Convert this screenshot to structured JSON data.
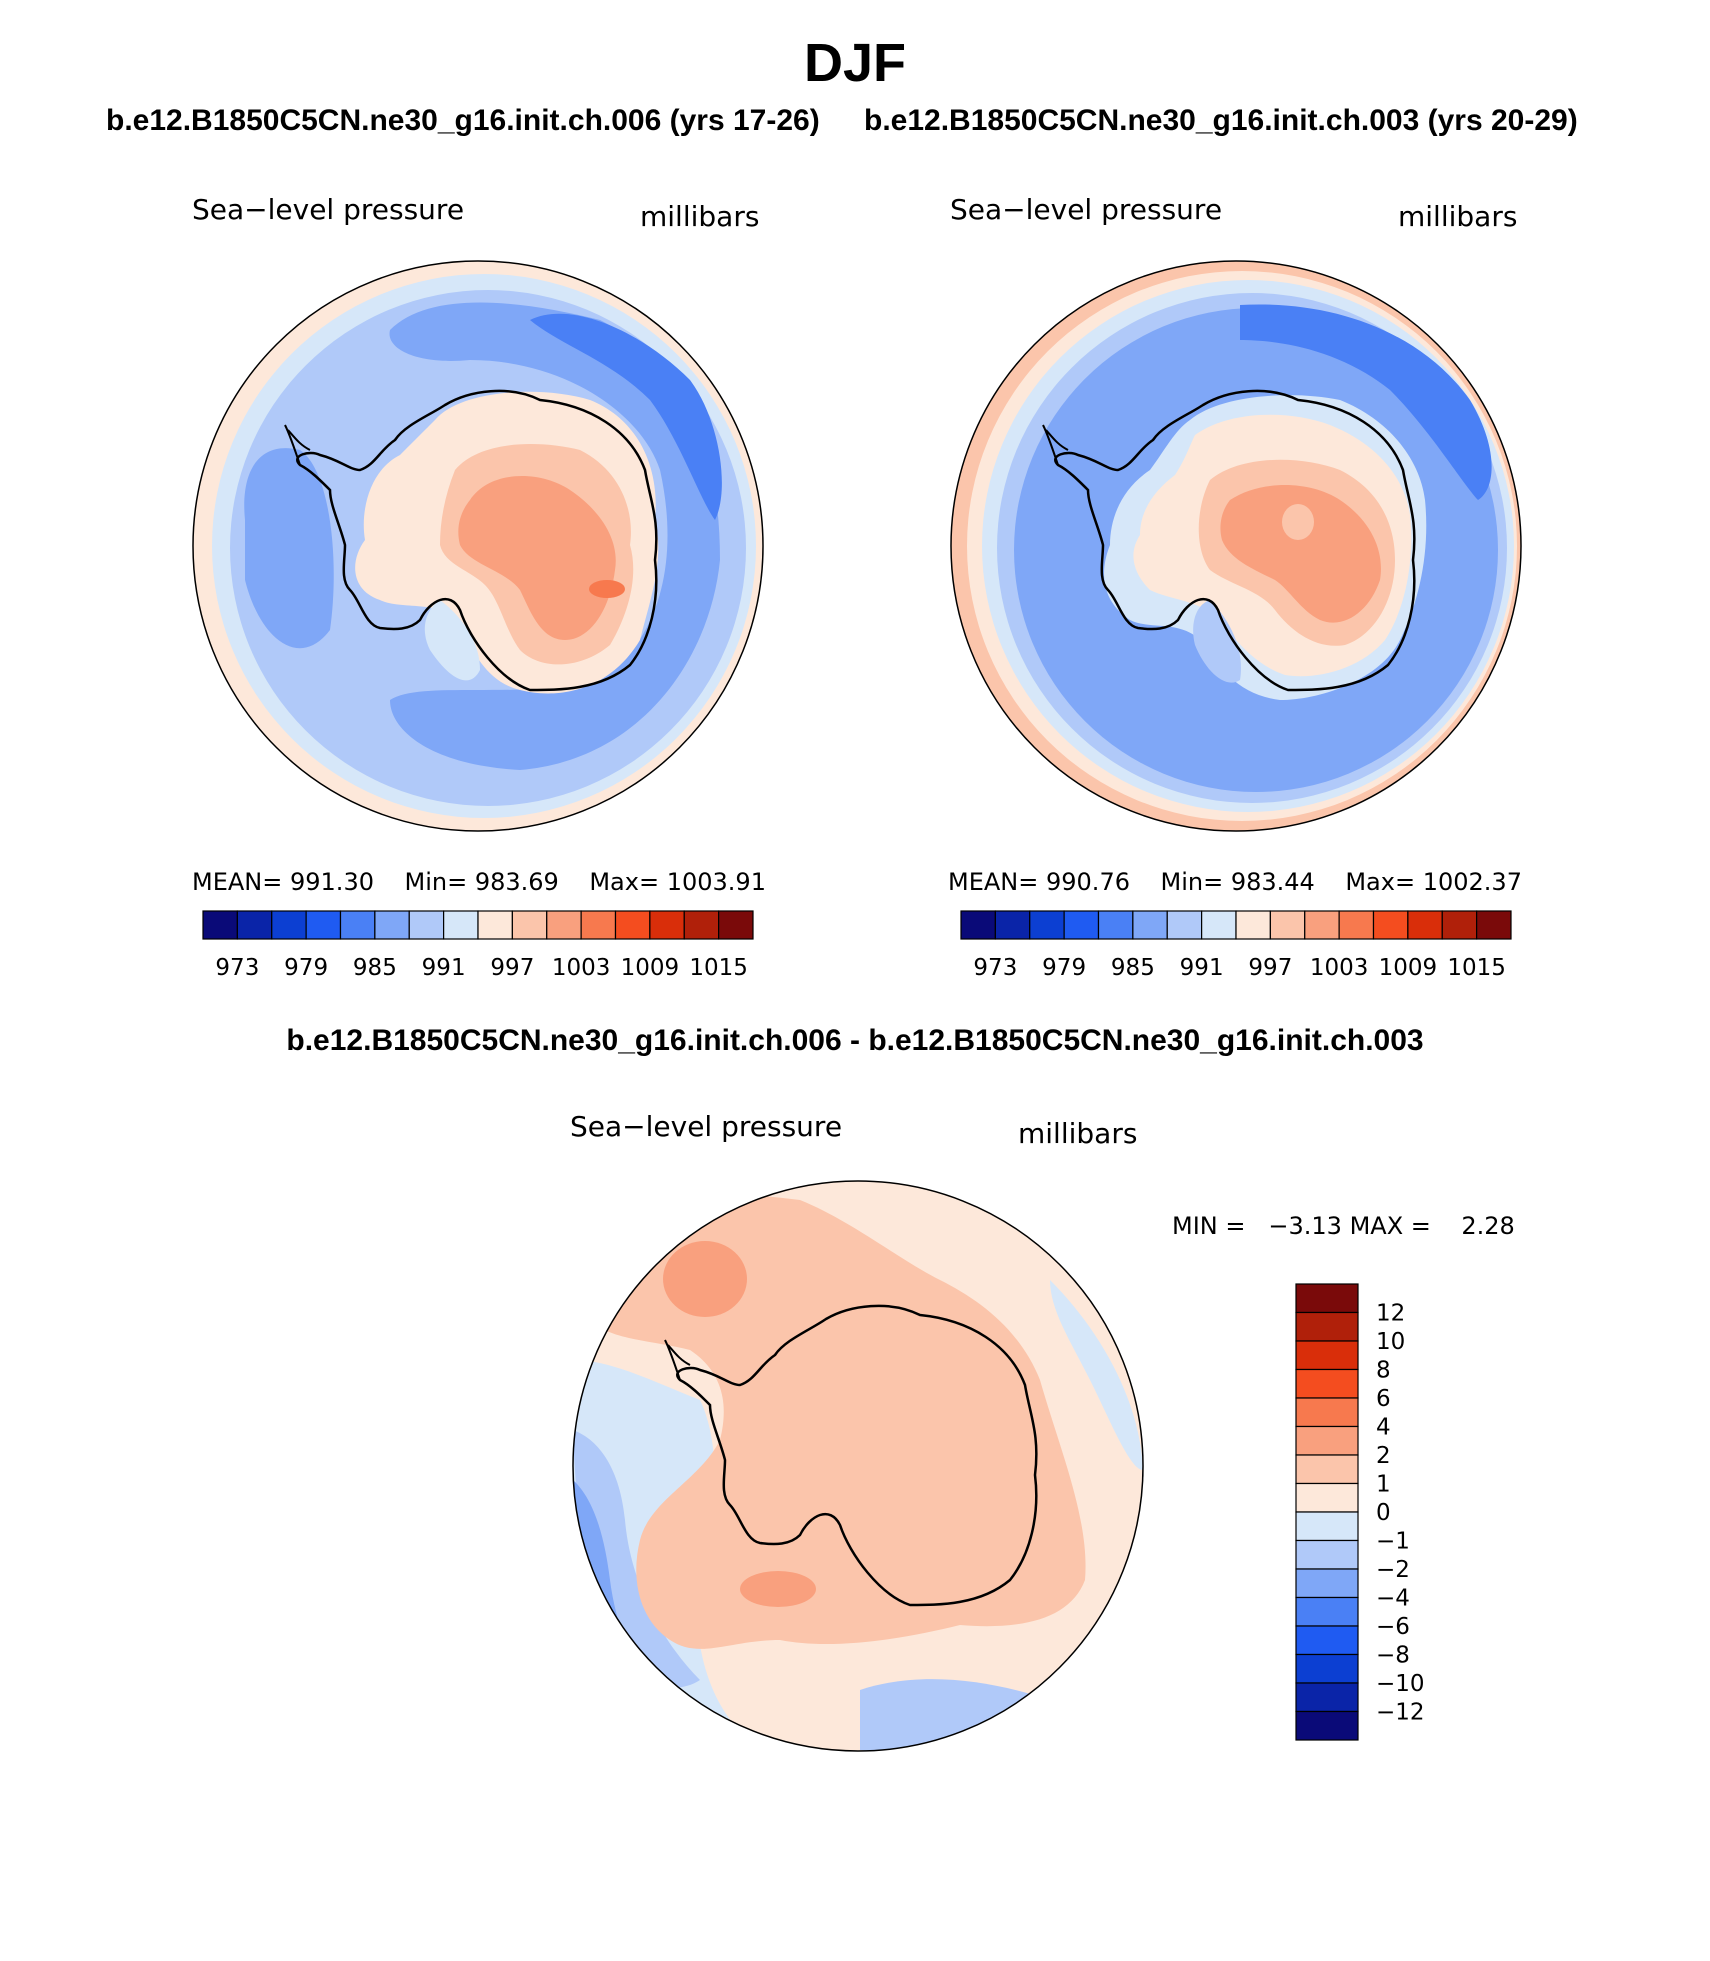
{
  "header": {
    "title": "DJF",
    "subtitle_left": "b.e12.B1850C5CN.ne30_g16.init.ch.006 (yrs 17-26)",
    "subtitle_right": "b.e12.B1850C5CN.ne30_g16.init.ch.003 (yrs 20-29)",
    "diff_title": "b.e12.B1850C5CN.ne30_g16.init.ch.006 - b.e12.B1850C5CN.ne30_g16.init.ch.003"
  },
  "panel_left": {
    "variable": "Sea−level pressure",
    "units": "millibars",
    "stats": {
      "mean_label": "MEAN=",
      "mean": "991.30",
      "min_label": "Min=",
      "min": "983.69",
      "max_label": "Max=",
      "max": "1003.91"
    }
  },
  "panel_right": {
    "variable": "Sea−level pressure",
    "units": "millibars",
    "stats": {
      "mean_label": "MEAN=",
      "mean": "990.76",
      "min_label": "Min=",
      "min": "983.44",
      "max_label": "Max=",
      "max": "1002.37"
    }
  },
  "panel_diff": {
    "variable": "Sea−level pressure",
    "units": "millibars",
    "min_label": "MIN =",
    "min": "−3.13",
    "max_label": "MAX =",
    "max": "2.28"
  },
  "colors": {
    "palette": [
      "#0a0a78",
      "#0a24a8",
      "#0c3fd2",
      "#1f5bf2",
      "#4a80f5",
      "#7fa7f7",
      "#b0c9f9",
      "#d6e7f9",
      "#fde8da",
      "#fbc5ab",
      "#f9a07e",
      "#f7794e",
      "#f44d1f",
      "#d92e0a",
      "#b0200a",
      "#7a0a0a"
    ],
    "slp": {
      "d977": "#4a80f5",
      "d983": "#4a80f5",
      "d985": "#7fa7f7",
      "d988": "#b0c9f9",
      "d991": "#d6e7f9",
      "d994": "#fde8da",
      "d997": "#fbc5ab",
      "d1000": "#f9a07e",
      "d1003": "#f7794e"
    }
  },
  "colorbar_slp": {
    "boundaries": [
      970,
      973,
      976,
      979,
      982,
      985,
      988,
      991,
      994,
      997,
      1000,
      1003,
      1006,
      1009,
      1012,
      1015
    ],
    "labels": [
      "973",
      "979",
      "985",
      "991",
      "997",
      "1003",
      "1009",
      "1015"
    ]
  },
  "colorbar_diff": {
    "boundaries": [
      -12,
      -10,
      -8,
      -6,
      -4,
      -2,
      -1,
      0,
      1,
      2,
      4,
      6,
      8,
      10,
      12
    ],
    "labels": [
      "12",
      "10",
      "8",
      "6",
      "4",
      "2",
      "1",
      "0",
      "−1",
      "−2",
      "−4",
      "−6",
      "−8",
      "−10",
      "−12"
    ]
  }
}
